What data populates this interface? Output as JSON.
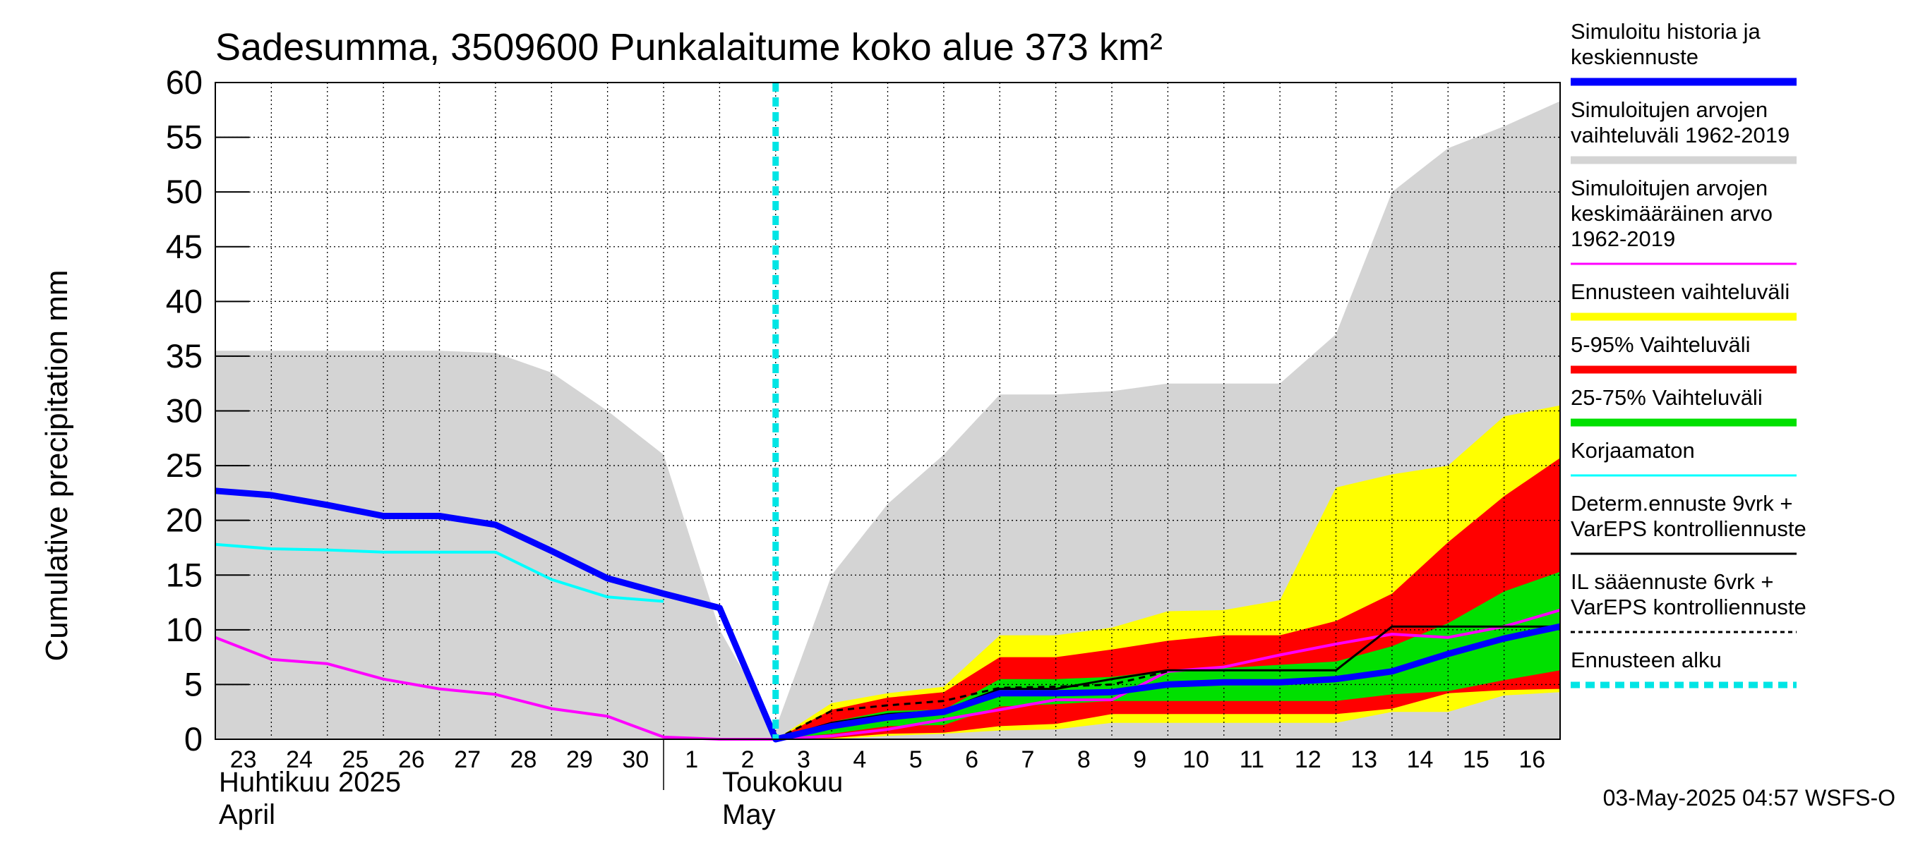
{
  "chart_data": {
    "type": "area",
    "title": "Sadesumma, 3509600 Punkalaitume koko alue 373 km²",
    "ylabel": "Cumulative precipitation    mm",
    "ylim": [
      0,
      60
    ],
    "yticks": [
      0,
      5,
      10,
      15,
      20,
      25,
      30,
      35,
      40,
      45,
      50,
      55,
      60
    ],
    "xlim": [
      0,
      24
    ],
    "grid": true,
    "legend_position": "right",
    "x_tick_labels": [
      {
        "day": 0,
        "label": "23"
      },
      {
        "day": 1,
        "label": "24"
      },
      {
        "day": 2,
        "label": "25"
      },
      {
        "day": 3,
        "label": "26"
      },
      {
        "day": 4,
        "label": "27"
      },
      {
        "day": 5,
        "label": "28"
      },
      {
        "day": 6,
        "label": "29"
      },
      {
        "day": 7,
        "label": "30"
      },
      {
        "day": 8,
        "label": "1"
      },
      {
        "day": 9,
        "label": "2"
      },
      {
        "day": 10,
        "label": "3"
      },
      {
        "day": 11,
        "label": "4"
      },
      {
        "day": 12,
        "label": "5"
      },
      {
        "day": 13,
        "label": "6"
      },
      {
        "day": 14,
        "label": "7"
      },
      {
        "day": 15,
        "label": "8"
      },
      {
        "day": 16,
        "label": "9"
      },
      {
        "day": 17,
        "label": "10"
      },
      {
        "day": 18,
        "label": "11"
      },
      {
        "day": 19,
        "label": "12"
      },
      {
        "day": 20,
        "label": "13"
      },
      {
        "day": 21,
        "label": "14"
      },
      {
        "day": 22,
        "label": "15"
      },
      {
        "day": 23,
        "label": "16"
      }
    ],
    "month_labels": {
      "april_fi": "Huhtikuu  2025",
      "april_en": "April",
      "may_fi": "Toukokuu",
      "may_en": "May"
    },
    "forecast_start_day": 10,
    "bands": [
      {
        "name": "Simuloitujen arvojen vaihteluväli 1962-2019",
        "color": "#d4d4d4",
        "x": [
          0,
          1,
          2,
          3,
          4,
          5,
          6,
          7,
          8,
          9,
          10,
          11,
          12,
          13,
          14,
          15,
          16,
          17,
          18,
          19,
          20,
          21,
          22,
          23,
          24
        ],
        "upper": [
          35.5,
          35.5,
          35.5,
          35.5,
          35.5,
          35.3,
          33.5,
          30,
          26,
          10,
          1,
          15,
          21.5,
          26,
          31.5,
          31.5,
          31.8,
          32.5,
          32.5,
          32.5,
          37,
          50,
          54,
          56,
          58.3
        ],
        "lower": [
          0,
          0,
          0,
          0,
          0,
          0,
          0,
          0,
          0,
          0,
          0,
          0,
          0,
          0,
          0,
          0,
          0,
          0,
          0,
          0,
          0,
          0,
          0,
          0,
          0
        ]
      },
      {
        "name": "Ennusteen vaihteluväli",
        "color": "#ffff00",
        "x": [
          10,
          11,
          12,
          13,
          14,
          15,
          16,
          17,
          18,
          19,
          20,
          21,
          22,
          23,
          24
        ],
        "upper": [
          0,
          3.3,
          4.2,
          4.8,
          9.5,
          9.5,
          10.2,
          11.7,
          11.8,
          12.7,
          23,
          24.2,
          25,
          29.5,
          30.5
        ],
        "lower": [
          0,
          0,
          0.3,
          0.5,
          0.8,
          0.9,
          1.5,
          1.5,
          1.5,
          1.5,
          1.5,
          2.5,
          2.5,
          4,
          4.3
        ]
      },
      {
        "name": "5-95% Vaihteluväli",
        "color": "#ff0000",
        "x": [
          10,
          11,
          12,
          13,
          14,
          15,
          16,
          17,
          18,
          19,
          20,
          21,
          22,
          23,
          24
        ],
        "upper": [
          0,
          2.7,
          3.8,
          4.3,
          7.5,
          7.5,
          8.2,
          9,
          9.5,
          9.5,
          10.8,
          13.3,
          18,
          22.2,
          25.7
        ],
        "lower": [
          0,
          0.1,
          0.5,
          0.6,
          1.2,
          1.4,
          2.3,
          2.3,
          2.3,
          2.3,
          2.3,
          2.8,
          4.2,
          4.5,
          4.6
        ]
      },
      {
        "name": "25-75% Vaihteluväli",
        "color": "#00e000",
        "x": [
          10,
          11,
          12,
          13,
          14,
          15,
          16,
          17,
          18,
          19,
          20,
          21,
          22,
          23,
          24
        ],
        "upper": [
          0,
          1.6,
          2.6,
          2.7,
          5.5,
          5.5,
          5.7,
          6.3,
          6.5,
          6.8,
          7.1,
          8.5,
          10.6,
          13.5,
          15.3
        ],
        "lower": [
          0,
          0.5,
          1.2,
          1.3,
          3.0,
          3.2,
          3.5,
          3.5,
          3.5,
          3.5,
          3.5,
          4.1,
          4.4,
          5.4,
          6.3
        ]
      }
    ],
    "series": [
      {
        "name": "Simuloitujen arvojen keskimääräinen arvo 1962-2019",
        "color": "#ff00ff",
        "width": 4,
        "dash": "",
        "x": [
          0,
          1,
          2,
          3,
          4,
          5,
          6,
          7,
          8,
          9,
          10,
          11,
          12,
          13,
          14,
          15,
          16,
          17,
          18,
          19,
          20,
          21,
          22,
          23,
          24
        ],
        "y": [
          9.3,
          7.3,
          6.9,
          5.5,
          4.6,
          4.1,
          2.8,
          2.1,
          0.2,
          0,
          0,
          0.3,
          0.9,
          1.8,
          2.7,
          3.6,
          3.6,
          6.2,
          6.6,
          7.7,
          8.7,
          9.6,
          9.3,
          10.3,
          11.8
        ]
      },
      {
        "name": "Korjaamaton",
        "color": "#00ffff",
        "width": 4,
        "dash": "",
        "x": [
          0,
          1,
          2,
          3,
          4,
          5,
          6,
          7,
          8
        ],
        "y": [
          17.8,
          17.4,
          17.3,
          17.1,
          17.1,
          17.1,
          14.6,
          13.0,
          12.6
        ]
      },
      {
        "name": "Determ.ennuste 9vrk + VarEPS kontrolliennuste",
        "color": "#000000",
        "width": 3,
        "dash": "",
        "x": [
          10,
          11,
          12,
          13,
          14,
          15,
          16,
          17,
          18,
          19,
          20,
          21,
          22,
          23,
          24
        ],
        "y": [
          0,
          1.5,
          2.3,
          2.6,
          4.6,
          4.6,
          5.5,
          6.3,
          6.3,
          6.3,
          6.3,
          10.3,
          10.3,
          10.3,
          10.3
        ]
      },
      {
        "name": "IL sääennuste 6vrk + VarEPS kontrolliennuste",
        "color": "#000000",
        "width": 3,
        "dash": "9,7",
        "x": [
          10,
          11,
          12,
          13,
          14,
          15,
          16,
          17
        ],
        "y": [
          0,
          2.6,
          3.1,
          3.5,
          4.7,
          4.8,
          5.0,
          6.2
        ]
      },
      {
        "name": "Simuloitu historia ja keskiennuste",
        "color": "#0000ff",
        "width": 9,
        "dash": "",
        "x": [
          0,
          1,
          2,
          3,
          4,
          5,
          6,
          7,
          8,
          9,
          10,
          11,
          12,
          13,
          14,
          15,
          16,
          17,
          18,
          19,
          20,
          21,
          22,
          23,
          24
        ],
        "y": [
          22.7,
          22.3,
          21.4,
          20.4,
          20.4,
          19.6,
          17.2,
          14.7,
          13.3,
          12.0,
          0,
          1.2,
          2.0,
          2.5,
          4.2,
          4.2,
          4.3,
          5.0,
          5.2,
          5.2,
          5.5,
          6.2,
          7.8,
          9.2,
          10.3
        ]
      }
    ],
    "legend": [
      {
        "text": "Simuloitu historia ja keskiennuste",
        "swatch": "band",
        "color": "#0000ff"
      },
      {
        "text": "Simuloitujen arvojen vaihteluväli 1962-2019",
        "swatch": "band",
        "color": "#d4d4d4"
      },
      {
        "text": "Simuloitujen arvojen keskimääräinen arvo    1962-2019",
        "swatch": "thin",
        "color": "#ff00ff"
      },
      {
        "text": "Ennusteen vaihteluväli",
        "swatch": "band",
        "color": "#ffff00"
      },
      {
        "text": "5-95% Vaihteluväli",
        "swatch": "band",
        "color": "#ff0000"
      },
      {
        "text": "25-75% Vaihteluväli",
        "swatch": "band",
        "color": "#00e000"
      },
      {
        "text": "Korjaamaton",
        "swatch": "thin",
        "color": "#00ffff"
      },
      {
        "text": "Determ.ennuste 9vrk + VarEPS kontrolliennuste",
        "swatch": "thin",
        "color": "#000000"
      },
      {
        "text": "IL sääennuste 6vrk  +   VarEPS kontrolliennuste",
        "swatch": "dashed",
        "color": "#000000"
      },
      {
        "text": "Ennusteen alku",
        "swatch": "dotted",
        "color": "#00e5e5"
      }
    ],
    "timestamp": "03-May-2025 04:57 WSFS-O"
  }
}
